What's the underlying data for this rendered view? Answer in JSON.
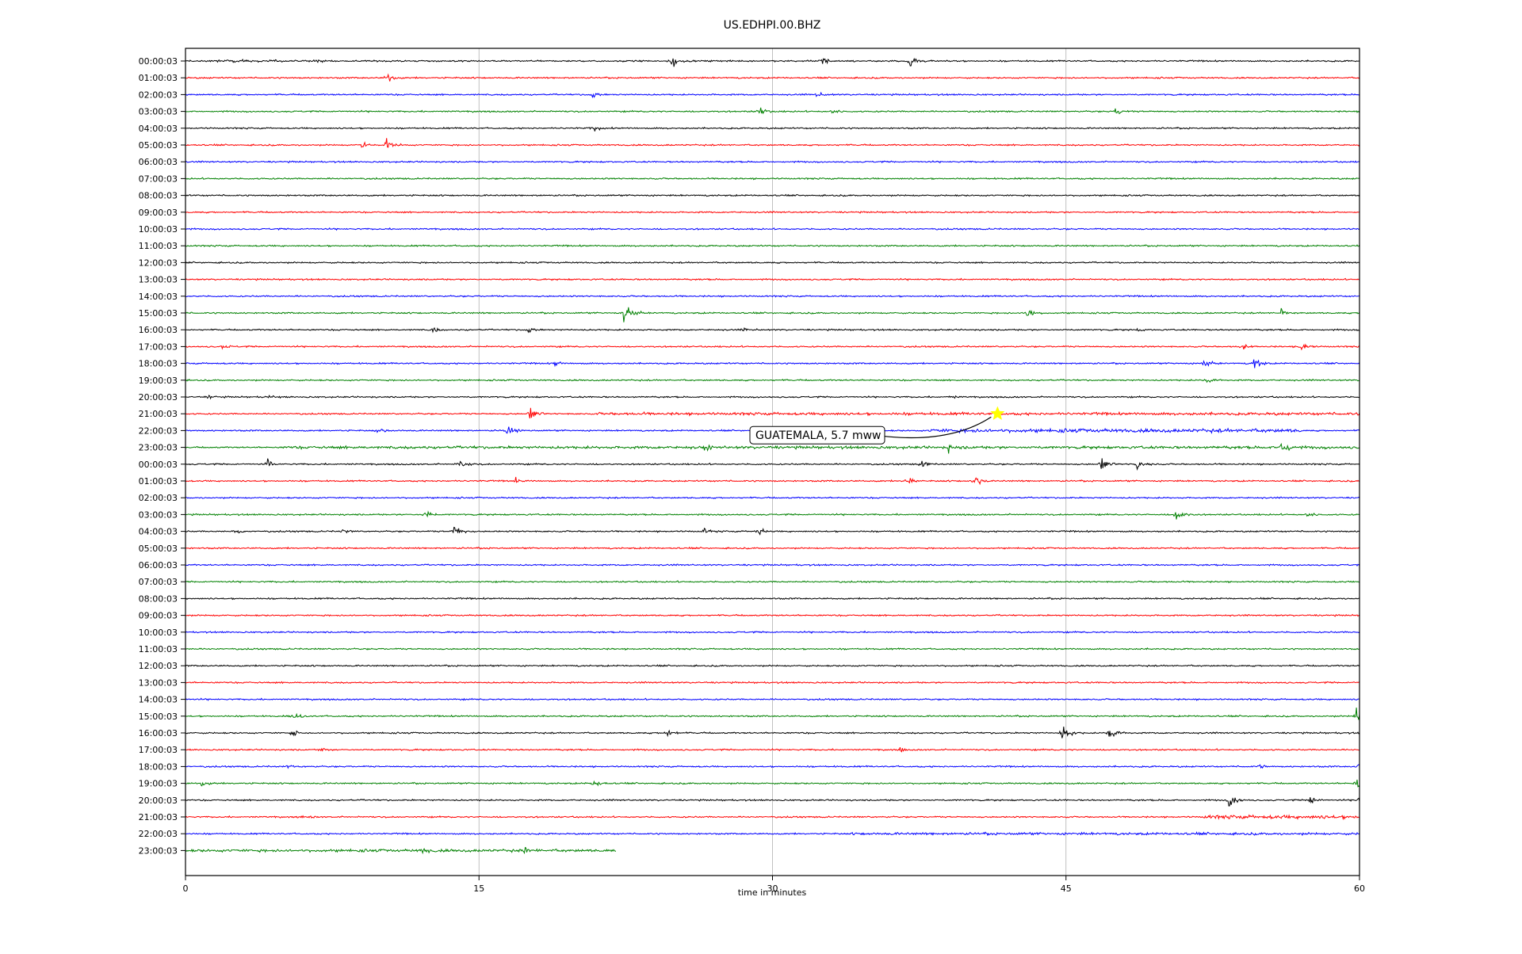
{
  "chart_data": {
    "type": "line",
    "title": "US.EDHPI.00.BHZ",
    "xlabel": "time in minutes",
    "ylabel": "",
    "xlim": [
      0,
      60
    ],
    "xticks": [
      0,
      15,
      30,
      45,
      60
    ],
    "grid": true,
    "colors_cycle": [
      "#000000",
      "#ff0000",
      "#0000ff",
      "#008000"
    ],
    "row_labels": [
      "00:00:03",
      "01:00:03",
      "02:00:03",
      "03:00:03",
      "04:00:03",
      "05:00:03",
      "06:00:03",
      "07:00:03",
      "08:00:03",
      "09:00:03",
      "10:00:03",
      "11:00:03",
      "12:00:03",
      "13:00:03",
      "14:00:03",
      "15:00:03",
      "16:00:03",
      "17:00:03",
      "18:00:03",
      "19:00:03",
      "20:00:03",
      "21:00:03",
      "22:00:03",
      "23:00:03",
      "00:00:03",
      "01:00:03",
      "02:00:03",
      "03:00:03",
      "04:00:03",
      "05:00:03",
      "06:00:03",
      "07:00:03",
      "08:00:03",
      "09:00:03",
      "10:00:03",
      "11:00:03",
      "12:00:03",
      "13:00:03",
      "14:00:03",
      "15:00:03",
      "16:00:03",
      "17:00:03",
      "18:00:03",
      "19:00:03",
      "20:00:03",
      "21:00:03",
      "22:00:03",
      "23:00:03"
    ],
    "last_row_end_minute": 22,
    "annotation": {
      "text": "GUATEMALA, 5.7 mww",
      "row_index": 21,
      "minute": 41.5,
      "marker": "star",
      "marker_color": "#ffff00"
    },
    "events": [
      {
        "row": 0,
        "minute": 24.8,
        "amp": 1.4
      },
      {
        "row": 0,
        "minute": 32.5,
        "amp": 1.1
      },
      {
        "row": 0,
        "minute": 37.0,
        "amp": 1.4
      },
      {
        "row": 0,
        "minute": 6.5,
        "amp": 0.6
      },
      {
        "row": 1,
        "minute": 10.3,
        "amp": 0.7
      },
      {
        "row": 2,
        "minute": 20.8,
        "amp": 0.6
      },
      {
        "row": 2,
        "minute": 32.2,
        "amp": 0.6
      },
      {
        "row": 3,
        "minute": 29.3,
        "amp": 0.8
      },
      {
        "row": 3,
        "minute": 33.0,
        "amp": 0.7
      },
      {
        "row": 3,
        "minute": 47.5,
        "amp": 0.6
      },
      {
        "row": 4,
        "minute": 20.8,
        "amp": 0.6
      },
      {
        "row": 5,
        "minute": 9.0,
        "amp": 0.7
      },
      {
        "row": 5,
        "minute": 10.2,
        "amp": 1.1
      },
      {
        "row": 15,
        "minute": 22.4,
        "amp": 2.2
      },
      {
        "row": 15,
        "minute": 43.0,
        "amp": 0.8
      },
      {
        "row": 15,
        "minute": 56.0,
        "amp": 0.6
      },
      {
        "row": 16,
        "minute": 12.5,
        "amp": 0.7
      },
      {
        "row": 16,
        "minute": 17.5,
        "amp": 0.6
      },
      {
        "row": 16,
        "minute": 28.5,
        "amp": 0.6
      },
      {
        "row": 16,
        "minute": 48.5,
        "amp": 0.6
      },
      {
        "row": 17,
        "minute": 1.8,
        "amp": 0.6
      },
      {
        "row": 17,
        "minute": 54.0,
        "amp": 0.7
      },
      {
        "row": 17,
        "minute": 57.0,
        "amp": 0.7
      },
      {
        "row": 18,
        "minute": 18.8,
        "amp": 0.6
      },
      {
        "row": 18,
        "minute": 52.0,
        "amp": 0.8
      },
      {
        "row": 18,
        "minute": 54.6,
        "amp": 1.0
      },
      {
        "row": 19,
        "minute": 52.2,
        "amp": 0.6
      },
      {
        "row": 20,
        "minute": 1.2,
        "amp": 0.6
      },
      {
        "row": 20,
        "minute": 4.2,
        "amp": 0.5
      },
      {
        "row": 20,
        "minute": 39.0,
        "amp": 0.5
      },
      {
        "row": 21,
        "minute": 17.6,
        "amp": 1.0
      },
      {
        "row": 22,
        "minute": 16.4,
        "amp": 1.0
      },
      {
        "row": 22,
        "minute": 9.8,
        "amp": 0.7
      },
      {
        "row": 23,
        "minute": 26.5,
        "amp": 0.9
      },
      {
        "row": 23,
        "minute": 39.0,
        "amp": 0.9
      },
      {
        "row": 23,
        "minute": 56.0,
        "amp": 1.4
      },
      {
        "row": 24,
        "minute": 4.2,
        "amp": 0.9
      },
      {
        "row": 24,
        "minute": 14.0,
        "amp": 1.0
      },
      {
        "row": 24,
        "minute": 37.6,
        "amp": 0.8
      },
      {
        "row": 24,
        "minute": 46.8,
        "amp": 1.0
      },
      {
        "row": 24,
        "minute": 48.6,
        "amp": 0.9
      },
      {
        "row": 25,
        "minute": 16.8,
        "amp": 0.7
      },
      {
        "row": 25,
        "minute": 36.9,
        "amp": 1.1
      },
      {
        "row": 25,
        "minute": 40.3,
        "amp": 1.2
      },
      {
        "row": 27,
        "minute": 12.2,
        "amp": 0.8
      },
      {
        "row": 27,
        "minute": 50.6,
        "amp": 1.0
      },
      {
        "row": 27,
        "minute": 57.3,
        "amp": 0.7
      },
      {
        "row": 28,
        "minute": 2.6,
        "amp": 0.6
      },
      {
        "row": 28,
        "minute": 8.0,
        "amp": 0.7
      },
      {
        "row": 28,
        "minute": 13.7,
        "amp": 1.3
      },
      {
        "row": 28,
        "minute": 26.5,
        "amp": 0.7
      },
      {
        "row": 28,
        "minute": 29.2,
        "amp": 0.8
      },
      {
        "row": 39,
        "minute": 5.5,
        "amp": 0.8
      },
      {
        "row": 39,
        "minute": 59.8,
        "amp": 1.6
      },
      {
        "row": 40,
        "minute": 5.5,
        "amp": 0.8
      },
      {
        "row": 40,
        "minute": 24.6,
        "amp": 0.7
      },
      {
        "row": 40,
        "minute": 44.8,
        "amp": 1.5
      },
      {
        "row": 40,
        "minute": 47.2,
        "amp": 1.2
      },
      {
        "row": 41,
        "minute": 6.9,
        "amp": 0.6
      },
      {
        "row": 41,
        "minute": 36.5,
        "amp": 0.5
      },
      {
        "row": 42,
        "minute": 5.2,
        "amp": 0.5
      },
      {
        "row": 42,
        "minute": 54.8,
        "amp": 0.7
      },
      {
        "row": 42,
        "minute": 59.9,
        "amp": 1.0
      },
      {
        "row": 43,
        "minute": 0.8,
        "amp": 0.6
      },
      {
        "row": 43,
        "minute": 20.8,
        "amp": 0.8
      },
      {
        "row": 43,
        "minute": 59.8,
        "amp": 1.4
      },
      {
        "row": 44,
        "minute": 53.3,
        "amp": 1.4
      },
      {
        "row": 44,
        "minute": 57.4,
        "amp": 0.7
      },
      {
        "row": 44,
        "minute": 59.9,
        "amp": 1.0
      },
      {
        "row": 45,
        "minute": 6.0,
        "amp": 0.6
      },
      {
        "row": 47,
        "minute": 12.1,
        "amp": 0.6
      },
      {
        "row": 47,
        "minute": 17.3,
        "amp": 1.0
      }
    ],
    "noisy_segments": [
      {
        "row": 21,
        "from": 21.0,
        "to": 60.0,
        "level": 1.8
      },
      {
        "row": 22,
        "from": 38.0,
        "to": 57.0,
        "level": 2.4
      },
      {
        "row": 23,
        "from": 5.0,
        "to": 60.0,
        "level": 1.8
      },
      {
        "row": 45,
        "from": 52.0,
        "to": 60.0,
        "level": 2.4
      },
      {
        "row": 46,
        "from": 34.0,
        "to": 60.0,
        "level": 1.6
      },
      {
        "row": 47,
        "from": 0.0,
        "to": 22.0,
        "level": 1.8
      },
      {
        "row": 0,
        "from": 0.0,
        "to": 5.0,
        "level": 1.6
      }
    ]
  }
}
